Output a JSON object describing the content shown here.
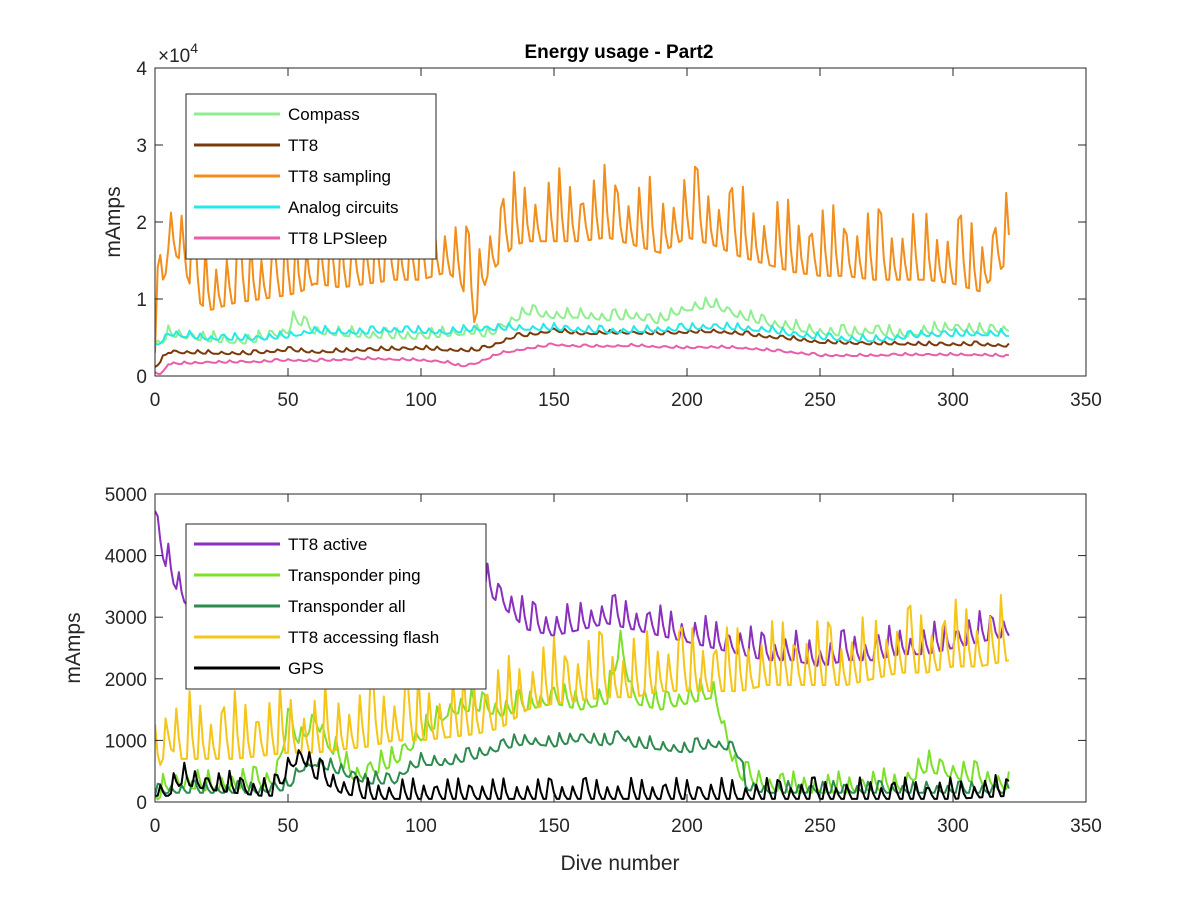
{
  "figure": {
    "title": "Energy usage - Part2"
  },
  "chart_data": [
    {
      "type": "line",
      "title": "Energy usage - Part2",
      "xlabel": "",
      "ylabel": "mAmps",
      "y_exponent_label": "×10",
      "y_exponent_power": "4",
      "xlim": [
        0,
        350
      ],
      "ylim": [
        0,
        40000
      ],
      "x_ticks": [
        0,
        50,
        100,
        150,
        200,
        250,
        300,
        350
      ],
      "x_tick_labels": [
        "0",
        "50",
        "100",
        "150",
        "200",
        "250",
        "300",
        "350"
      ],
      "y_ticks": [
        0,
        10000,
        20000,
        30000,
        40000
      ],
      "y_tick_labels": [
        "0",
        "1",
        "2",
        "3",
        "4"
      ],
      "grid": false,
      "legend_position": "top-left",
      "series": [
        {
          "name": "Compass",
          "color": "#90ee90",
          "x": [
            0,
            5,
            20,
            35,
            50,
            52,
            60,
            80,
            100,
            110,
            120,
            125,
            135,
            140,
            150,
            160,
            170,
            180,
            190,
            195,
            200,
            205,
            210,
            215,
            220,
            230,
            240,
            250,
            260,
            270,
            280,
            290,
            300,
            310,
            321
          ],
          "values": [
            3000,
            5200,
            4500,
            4200,
            5500,
            7200,
            5500,
            5000,
            4800,
            5200,
            5500,
            5000,
            7000,
            8000,
            7500,
            7600,
            7200,
            7500,
            6800,
            7800,
            8500,
            8700,
            9000,
            8200,
            7500,
            6600,
            6000,
            5400,
            5200,
            5600,
            5000,
            5500,
            6000,
            5500,
            5800
          ],
          "spike_amp": 1400
        },
        {
          "name": "TT8",
          "color": "#7a3b0c",
          "x": [
            0,
            5,
            20,
            35,
            50,
            60,
            80,
            100,
            110,
            120,
            125,
            135,
            140,
            150,
            160,
            170,
            180,
            190,
            200,
            210,
            220,
            230,
            240,
            250,
            260,
            270,
            280,
            290,
            300,
            310,
            321
          ],
          "values": [
            1000,
            3000,
            2900,
            2800,
            3300,
            3000,
            3300,
            3500,
            3300,
            3200,
            3600,
            5000,
            5200,
            5800,
            5400,
            5500,
            5500,
            5400,
            5600,
            5700,
            5400,
            5000,
            4700,
            4300,
            4200,
            4100,
            4100,
            4000,
            4000,
            4000,
            3800
          ],
          "spike_amp": 500
        },
        {
          "name": "TT8 sampling",
          "color": "#f28e1c",
          "x": [
            0,
            3,
            5,
            10,
            15,
            20,
            25,
            30,
            40,
            50,
            55,
            60,
            70,
            80,
            90,
            100,
            110,
            115,
            120,
            125,
            130,
            135,
            140,
            150,
            160,
            170,
            180,
            190,
            200,
            210,
            220,
            230,
            240,
            250,
            260,
            270,
            280,
            290,
            300,
            310,
            321
          ],
          "values": [
            3000,
            10000,
            16500,
            15000,
            10000,
            8500,
            9000,
            9500,
            10000,
            10500,
            11000,
            12000,
            11500,
            12000,
            12500,
            12500,
            13500,
            12000,
            7000,
            13000,
            15000,
            17000,
            17500,
            17500,
            17500,
            18000,
            17000,
            16000,
            18000,
            17000,
            15500,
            14500,
            13500,
            13000,
            13000,
            12500,
            12500,
            12500,
            12000,
            11000,
            15000
          ],
          "spike_amp": 9500
        },
        {
          "name": "Analog circuits",
          "color": "#26e8e8",
          "x": [
            0,
            5,
            20,
            40,
            50,
            60,
            70,
            80,
            90,
            100,
            110,
            120,
            130,
            140,
            150,
            160,
            170,
            180,
            190,
            200,
            210,
            220,
            230,
            240,
            250,
            260,
            270,
            280,
            290,
            300,
            310,
            321
          ],
          "values": [
            3500,
            5300,
            4700,
            4700,
            5000,
            5700,
            5500,
            5500,
            5800,
            5600,
            5500,
            5900,
            6000,
            6000,
            6000,
            5800,
            5600,
            5700,
            5800,
            6000,
            6200,
            6000,
            5800,
            5200,
            4800,
            4600,
            4500,
            4800,
            5200,
            5200,
            5300,
            5200
          ],
          "spike_amp": 900
        },
        {
          "name": "TT8 LPSleep",
          "color": "#e85fa8",
          "x": [
            0,
            2,
            5,
            20,
            40,
            50,
            60,
            80,
            100,
            110,
            115,
            120,
            130,
            140,
            150,
            160,
            170,
            180,
            190,
            200,
            210,
            220,
            230,
            240,
            250,
            260,
            270,
            280,
            290,
            300,
            310,
            321
          ],
          "values": [
            500,
            100,
            1500,
            1700,
            1800,
            2000,
            1900,
            2200,
            2000,
            1700,
            1200,
            1500,
            2900,
            3500,
            4000,
            3800,
            3800,
            3900,
            3700,
            3600,
            3700,
            3600,
            3300,
            3000,
            2600,
            2600,
            2600,
            2700,
            2700,
            2700,
            2700,
            2500
          ],
          "spike_amp": 300
        }
      ]
    },
    {
      "type": "line",
      "title": "",
      "xlabel": "Dive number",
      "ylabel": "mAmps",
      "xlim": [
        0,
        350
      ],
      "ylim": [
        0,
        5000
      ],
      "x_ticks": [
        0,
        50,
        100,
        150,
        200,
        250,
        300,
        350
      ],
      "x_tick_labels": [
        "0",
        "50",
        "100",
        "150",
        "200",
        "250",
        "300",
        "350"
      ],
      "y_ticks": [
        0,
        1000,
        2000,
        3000,
        4000,
        5000
      ],
      "y_tick_labels": [
        "0",
        "1000",
        "2000",
        "3000",
        "4000",
        "5000"
      ],
      "grid": false,
      "legend_position": "top-left",
      "series": [
        {
          "name": "TT8 active",
          "color": "#8a2fbe",
          "x": [
            0,
            5,
            10,
            12,
            115,
            120,
            130,
            140,
            150,
            160,
            170,
            180,
            190,
            200,
            210,
            220,
            230,
            240,
            250,
            260,
            270,
            280,
            290,
            300,
            310,
            321
          ],
          "values": [
            4350,
            3700,
            3300,
            3200,
            3800,
            3600,
            3200,
            2800,
            2700,
            2800,
            2900,
            2800,
            2700,
            2600,
            2500,
            2400,
            2300,
            2300,
            2200,
            2300,
            2300,
            2400,
            2400,
            2500,
            2600,
            2700
          ],
          "spike_amp": 500
        },
        {
          "name": "Transponder ping",
          "color": "#7be02a",
          "x": [
            0,
            5,
            10,
            20,
            40,
            45,
            50,
            55,
            60,
            65,
            70,
            75,
            80,
            90,
            100,
            110,
            120,
            130,
            140,
            150,
            160,
            170,
            175,
            180,
            190,
            200,
            210,
            215,
            218,
            222,
            225,
            230,
            240,
            250,
            260,
            270,
            280,
            290,
            300,
            310,
            321
          ],
          "values": [
            0,
            200,
            250,
            180,
            250,
            300,
            1200,
            900,
            1300,
            900,
            600,
            350,
            400,
            600,
            1000,
            1400,
            1500,
            1400,
            1500,
            1600,
            1500,
            1600,
            2500,
            1600,
            1500,
            1600,
            1700,
            1000,
            500,
            300,
            300,
            200,
            150,
            150,
            150,
            200,
            200,
            500,
            400,
            300,
            200
          ],
          "spike_amp": 350
        },
        {
          "name": "Transponder all",
          "color": "#2e8b4f",
          "x": [
            0,
            5,
            10,
            40,
            50,
            55,
            60,
            70,
            80,
            90,
            95,
            100,
            110,
            120,
            130,
            140,
            150,
            160,
            170,
            175,
            180,
            190,
            200,
            210,
            215,
            220,
            222,
            230,
            240,
            250,
            260,
            270,
            280,
            290,
            300,
            310,
            321
          ],
          "values": [
            100,
            150,
            150,
            150,
            200,
            500,
            600,
            450,
            300,
            300,
            500,
            600,
            600,
            700,
            850,
            950,
            900,
            1000,
            900,
            1050,
            900,
            850,
            800,
            900,
            850,
            700,
            200,
            150,
            150,
            150,
            150,
            150,
            150,
            150,
            150,
            150,
            150
          ],
          "spike_amp": 200
        },
        {
          "name": "TT8 accessing flash",
          "color": "#f5c518",
          "x": [
            0,
            5,
            10,
            20,
            30,
            40,
            50,
            60,
            70,
            80,
            90,
            100,
            110,
            120,
            130,
            140,
            150,
            160,
            170,
            180,
            190,
            200,
            210,
            220,
            230,
            240,
            250,
            260,
            270,
            280,
            290,
            300,
            310,
            321
          ],
          "values": [
            400,
            900,
            700,
            700,
            700,
            750,
            800,
            800,
            850,
            900,
            1000,
            1000,
            1050,
            1100,
            1200,
            1500,
            1600,
            1650,
            1700,
            1700,
            1800,
            1800,
            1800,
            1800,
            1900,
            1900,
            1900,
            1900,
            2000,
            2100,
            2100,
            2200,
            2200,
            2300
          ],
          "spike_amp": 1100
        },
        {
          "name": "GPS",
          "color": "#000000",
          "x": [
            0,
            5,
            10,
            20,
            40,
            46,
            50,
            55,
            60,
            70,
            80,
            100,
            120,
            140,
            160,
            175,
            180,
            200,
            220,
            240,
            260,
            280,
            300,
            321
          ],
          "values": [
            100,
            100,
            300,
            200,
            100,
            100,
            500,
            700,
            400,
            150,
            50,
            50,
            50,
            50,
            50,
            50,
            50,
            50,
            50,
            50,
            50,
            50,
            50,
            100
          ],
          "spike_amp": 350
        }
      ]
    }
  ]
}
